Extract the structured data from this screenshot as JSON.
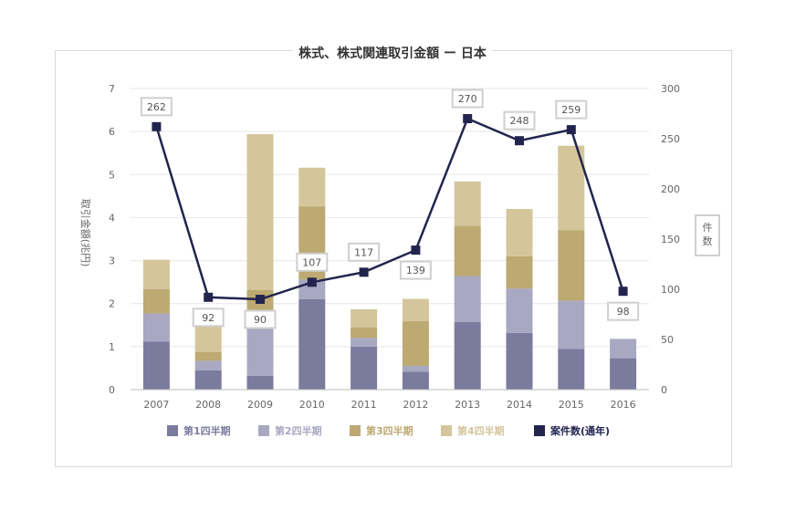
{
  "chart_data": {
    "type": "bar",
    "title": "株式、株式関連取引金額 ー 日本",
    "categories": [
      "2007",
      "2008",
      "2009",
      "2010",
      "2011",
      "2012",
      "2013",
      "2014",
      "2015",
      "2016"
    ],
    "series": [
      {
        "name": "第1四半期",
        "kind": "bar",
        "color": "#7b7b9e",
        "values": [
          1.12,
          0.45,
          0.32,
          2.1,
          1.0,
          0.42,
          1.57,
          1.32,
          0.95,
          0.73
        ]
      },
      {
        "name": "第2四半期",
        "kind": "bar",
        "color": "#a8a8c2",
        "values": [
          0.65,
          0.22,
          1.38,
          0.46,
          0.2,
          0.13,
          1.07,
          1.03,
          1.12,
          0.45
        ]
      },
      {
        "name": "第3四半期",
        "kind": "bar",
        "color": "#bda972",
        "values": [
          0.57,
          0.2,
          0.62,
          1.7,
          0.25,
          1.04,
          1.17,
          0.75,
          1.64,
          0
        ]
      },
      {
        "name": "第4四半期",
        "kind": "bar",
        "color": "#d4c59b",
        "values": [
          0.68,
          0.68,
          3.62,
          0.9,
          0.42,
          0.52,
          1.03,
          1.1,
          1.96,
          0
        ]
      },
      {
        "name": "案件数(通年)",
        "kind": "line",
        "color": "#22244e",
        "values": [
          262,
          92,
          90,
          107,
          117,
          139,
          270,
          248,
          259,
          98
        ]
      }
    ],
    "ylabel": "取引金額(兆円)",
    "ylim": [
      0,
      7
    ],
    "yticks": [
      0,
      1,
      2,
      3,
      4,
      5,
      6,
      7
    ],
    "y2label": "件数",
    "y2lim": [
      0,
      300
    ],
    "y2ticks": [
      0,
      50,
      100,
      150,
      200,
      250,
      300
    ],
    "grid": true,
    "legend": "bottom"
  }
}
